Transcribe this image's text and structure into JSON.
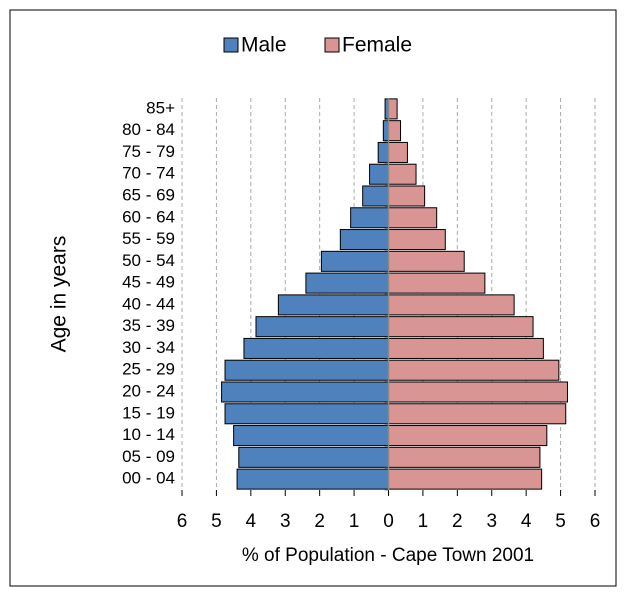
{
  "chart_data": {
    "type": "pyramid",
    "x_label": "% of Population - Cape Town 2001",
    "y_label": "Age in years",
    "categories": [
      "00 - 04",
      "05 - 09",
      "10 - 14",
      "15 - 19",
      "20 - 24",
      "25 - 29",
      "30 - 34",
      "35 - 39",
      "40 - 44",
      "45 - 49",
      "50 - 54",
      "55 - 59",
      "60 - 64",
      "65 - 69",
      "70 - 74",
      "75 - 79",
      "80 - 84",
      "85+"
    ],
    "series": [
      {
        "name": "Male",
        "color": "#4f81bd",
        "values": [
          -4.4,
          -4.35,
          -4.5,
          -4.75,
          -4.85,
          -4.75,
          -4.2,
          -3.85,
          -3.2,
          -2.4,
          -1.95,
          -1.4,
          -1.1,
          -0.75,
          -0.55,
          -0.3,
          -0.15,
          -0.1
        ]
      },
      {
        "name": "Female",
        "color": "#d99594",
        "values": [
          4.45,
          4.4,
          4.6,
          5.15,
          5.2,
          4.95,
          4.5,
          4.2,
          3.65,
          2.8,
          2.2,
          1.65,
          1.4,
          1.05,
          0.8,
          0.55,
          0.35,
          0.25
        ]
      }
    ],
    "xlim": [
      -6,
      6
    ],
    "xticks": [
      {
        "value": -6,
        "label": "6"
      },
      {
        "value": -5,
        "label": "5"
      },
      {
        "value": -4,
        "label": "4"
      },
      {
        "value": -3,
        "label": "3"
      },
      {
        "value": -2,
        "label": "2"
      },
      {
        "value": -1,
        "label": "1"
      },
      0,
      1,
      2,
      3,
      4,
      5,
      6
    ],
    "grid": true,
    "legend": "top"
  }
}
